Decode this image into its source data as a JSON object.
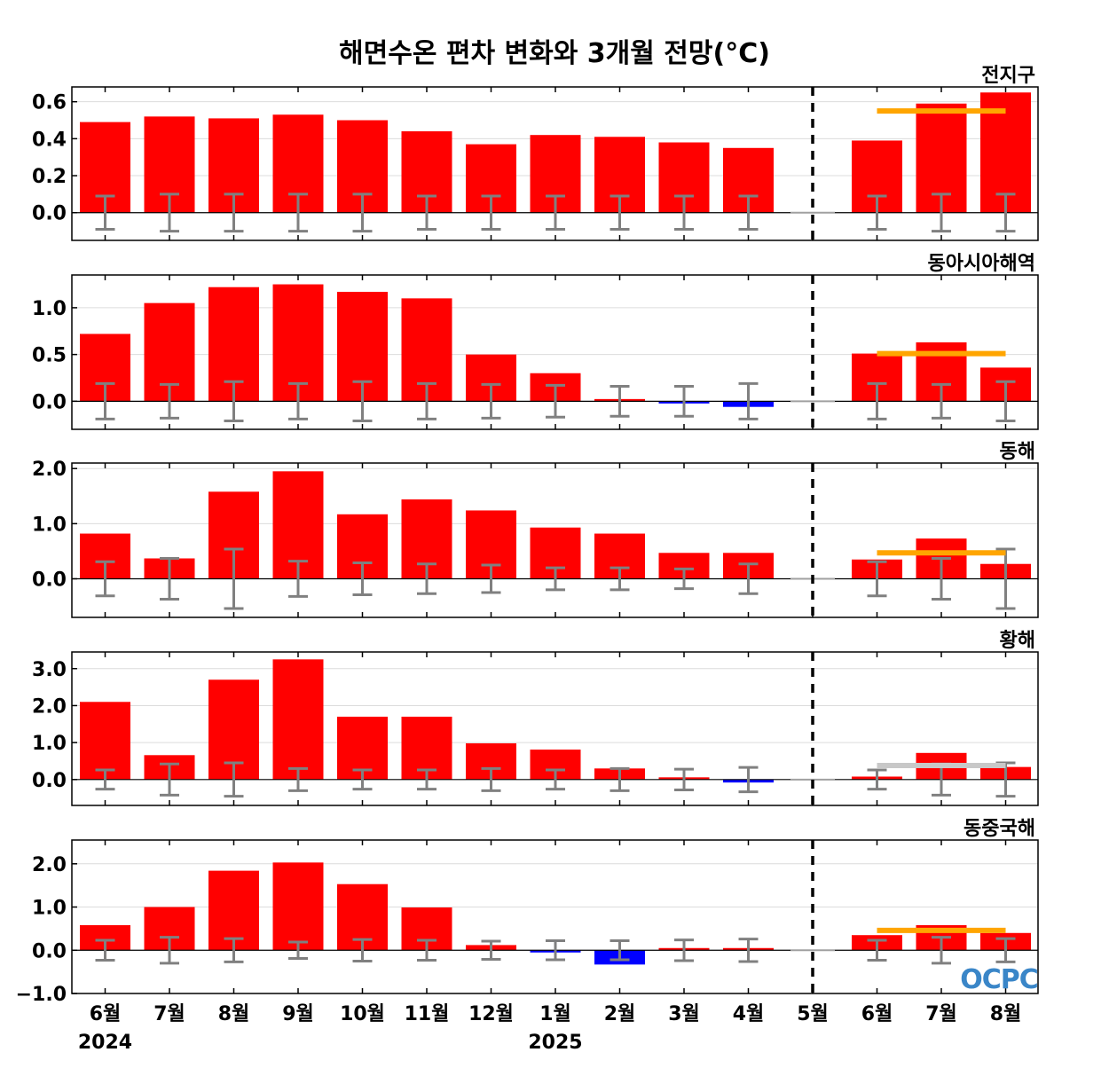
{
  "title": "해면수온 편차 변화와 3개월 전망(°C)",
  "months": [
    "6월",
    "7월",
    "8월",
    "9월",
    "10월",
    "11월",
    "12월",
    "1월",
    "2월",
    "3월",
    "4월",
    "5월",
    "6월",
    "7월",
    "8월"
  ],
  "years": [
    {
      "label": "2024",
      "index": 0
    },
    {
      "label": "2025",
      "index": 7
    }
  ],
  "forecast_divider_after_index": 11,
  "logo": "OCPC",
  "colors": {
    "positive": "#ff0000",
    "negative": "#0000ff",
    "outlook_normal": "#ffa500",
    "outlook_neutral": "#c8c8c8",
    "error_bar": "#808080"
  },
  "chart_data": [
    {
      "type": "bar",
      "region": "전지구",
      "ylim": [
        -0.15,
        0.68
      ],
      "yticks": [
        0.0,
        0.2,
        0.4,
        0.6
      ],
      "tick_labels": [
        "0.0",
        "0.2",
        "0.4",
        "0.6"
      ],
      "values": [
        0.49,
        0.52,
        0.51,
        0.53,
        0.5,
        0.44,
        0.37,
        0.42,
        0.41,
        0.38,
        0.35,
        null,
        0.39,
        0.59,
        0.65
      ],
      "normal_range": [
        0.09,
        0.1,
        0.1,
        0.1,
        0.1,
        0.09,
        0.09,
        0.09,
        0.09,
        0.09,
        0.09,
        null,
        0.09,
        0.1,
        0.1
      ],
      "outlook": {
        "value": 0.55,
        "color": "orange"
      }
    },
    {
      "type": "bar",
      "region": "동아시아해역",
      "ylim": [
        -0.3,
        1.35
      ],
      "yticks": [
        0.0,
        0.5,
        1.0
      ],
      "tick_labels": [
        "0.0",
        "0.5",
        "1.0"
      ],
      "values": [
        0.72,
        1.05,
        1.22,
        1.25,
        1.17,
        1.1,
        0.5,
        0.3,
        0.02,
        -0.01,
        -0.06,
        null,
        0.51,
        0.63,
        0.36
      ],
      "normal_range": [
        0.19,
        0.18,
        0.21,
        0.19,
        0.21,
        0.19,
        0.18,
        0.17,
        0.16,
        0.16,
        0.19,
        null,
        0.19,
        0.18,
        0.21
      ],
      "outlook": {
        "value": 0.51,
        "color": "orange"
      }
    },
    {
      "type": "bar",
      "region": "동해",
      "ylim": [
        -0.7,
        2.1
      ],
      "yticks": [
        0.0,
        1.0,
        2.0
      ],
      "tick_labels": [
        "0.0",
        "1.0",
        "2.0"
      ],
      "values": [
        0.82,
        0.37,
        1.58,
        1.95,
        1.17,
        1.44,
        1.24,
        0.93,
        0.82,
        0.47,
        0.47,
        null,
        0.35,
        0.73,
        0.27
      ],
      "normal_range": [
        0.31,
        0.37,
        0.54,
        0.32,
        0.29,
        0.27,
        0.25,
        0.2,
        0.2,
        0.18,
        0.27,
        null,
        0.31,
        0.37,
        0.54
      ],
      "outlook": {
        "value": 0.47,
        "color": "orange"
      }
    },
    {
      "type": "bar",
      "region": "황해",
      "ylim": [
        -0.7,
        3.45
      ],
      "yticks": [
        0.0,
        1.0,
        2.0,
        3.0
      ],
      "tick_labels": [
        "0.0",
        "1.0",
        "2.0",
        "3.0"
      ],
      "values": [
        2.1,
        0.66,
        2.7,
        3.25,
        1.7,
        1.7,
        0.98,
        0.81,
        0.3,
        0.03,
        -0.08,
        null,
        0.08,
        0.72,
        0.34
      ],
      "normal_range": [
        0.26,
        0.42,
        0.45,
        0.3,
        0.26,
        0.26,
        0.3,
        0.26,
        0.3,
        0.28,
        0.33,
        null,
        0.26,
        0.42,
        0.45
      ],
      "outlook": {
        "value": 0.38,
        "color": "gray"
      }
    },
    {
      "type": "bar",
      "region": "동중국해",
      "ylim": [
        -1.0,
        2.55
      ],
      "yticks": [
        -1.0,
        0.0,
        1.0,
        2.0
      ],
      "tick_labels": [
        "−1.0",
        "0.0",
        "1.0",
        "2.0"
      ],
      "values": [
        0.58,
        1.0,
        1.84,
        2.03,
        1.53,
        0.99,
        0.12,
        -0.04,
        -0.33,
        0.02,
        0.05,
        null,
        0.35,
        0.58,
        0.4
      ],
      "normal_range": [
        0.23,
        0.3,
        0.27,
        0.19,
        0.25,
        0.23,
        0.21,
        0.22,
        0.22,
        0.24,
        0.26,
        null,
        0.23,
        0.3,
        0.27
      ],
      "outlook": {
        "value": 0.46,
        "color": "orange"
      }
    }
  ]
}
